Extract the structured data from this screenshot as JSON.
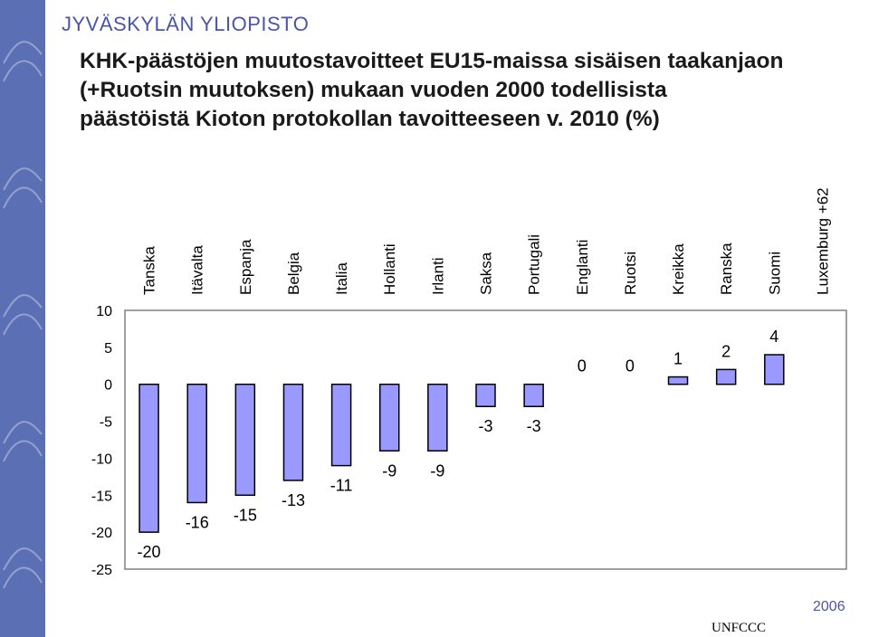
{
  "header": {
    "university": "JYVÄSKYLÄN YLIOPISTO",
    "title_lines": [
      "KHK-päästöjen muutostavoitteet EU15-maissa sisäisen taakanjaon",
      "(+Ruotsin muutoksen) mukaan vuoden 2000 todellisista",
      "päästöistä Kioton protokollan tavoitteeseen v. 2010 (%)"
    ]
  },
  "footer": {
    "source": "UNFCCC",
    "year": "2006"
  },
  "colors": {
    "sidebar": "#5b6fb5",
    "bar_fill": "#9999ff",
    "bar_stroke": "#000000",
    "accent_text": "#4a55a8"
  },
  "chart_data": {
    "type": "bar",
    "categories": [
      "Tanska",
      "Itävalta",
      "Espanja",
      "Belgia",
      "Italia",
      "Hollanti",
      "Irlanti",
      "Saksa",
      "Portugali",
      "Englanti",
      "Ruotsi",
      "Kreikka",
      "Ranska",
      "Suomi",
      "Luxemburg +62"
    ],
    "values": [
      -20,
      -16,
      -15,
      -13,
      -11,
      -9,
      -9,
      -3,
      -3,
      0,
      0,
      1,
      2,
      4,
      null
    ],
    "data_labels": [
      "-20",
      "-16",
      "-15",
      "-13",
      "-11",
      "-9",
      "-9",
      "-3",
      "-3",
      "0",
      "0",
      "1",
      "2",
      "4",
      ""
    ],
    "yticks": [
      10,
      5,
      0,
      -5,
      -10,
      -15,
      -20,
      -25
    ],
    "ylim": [
      -25,
      10
    ],
    "title": "",
    "xlabel": "",
    "ylabel": "",
    "grid": false,
    "legend": "none"
  }
}
